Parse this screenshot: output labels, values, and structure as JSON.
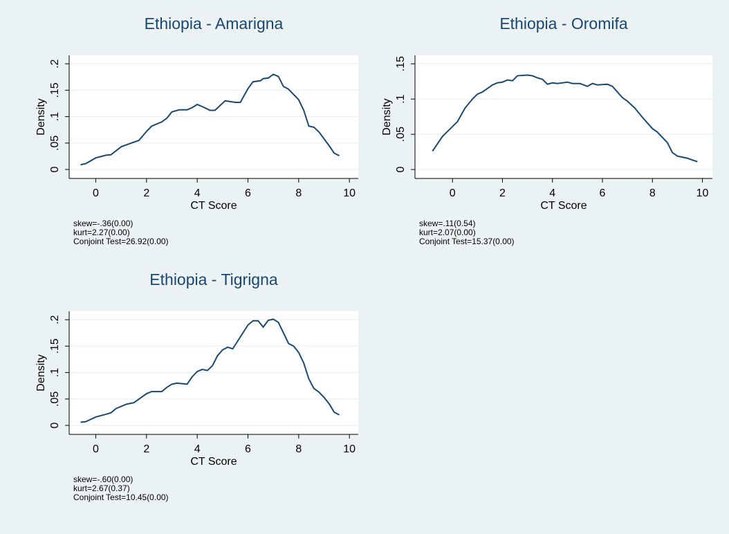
{
  "chart_data": [
    {
      "type": "line",
      "title": "Ethiopia - Amarigna",
      "xlabel": "CT Score",
      "ylabel": "Density",
      "notes": [
        "skew=-.36(0.00)",
        "kurt=2.27(0.00)",
        "Conjoint Test=26.92(0.00)"
      ],
      "xlim": [
        -1.05,
        10.35
      ],
      "ylim": [
        -0.017,
        0.216
      ],
      "xticks": [
        0,
        2,
        4,
        6,
        8,
        10
      ],
      "yticks": [
        0,
        {
          "value": 0.05,
          "label": ".05"
        },
        {
          "value": 0.1,
          "label": ".1"
        },
        {
          "value": 0.15,
          "label": ".15"
        },
        {
          "value": 0.2,
          "label": ".2"
        }
      ],
      "grid": true,
      "x": [
        -0.6,
        -0.4,
        0,
        0.4,
        0.6,
        1,
        1.4,
        1.7,
        2,
        2.2,
        2.6,
        2.8,
        3,
        3.3,
        3.6,
        3.8,
        4,
        4.2,
        4.5,
        4.7,
        5.1,
        5.5,
        5.7,
        6,
        6.2,
        6.5,
        6.6,
        6.8,
        7,
        7.2,
        7.4,
        7.6,
        8,
        8.2,
        8.4,
        8.6,
        8.8,
        9.2,
        9.4,
        9.6
      ],
      "series": [
        {
          "color": "#1a476f",
          "values": [
            0.009,
            0.011,
            0.022,
            0.027,
            0.028,
            0.043,
            0.05,
            0.055,
            0.072,
            0.082,
            0.09,
            0.097,
            0.109,
            0.113,
            0.113,
            0.117,
            0.123,
            0.119,
            0.112,
            0.112,
            0.13,
            0.127,
            0.127,
            0.153,
            0.166,
            0.168,
            0.172,
            0.173,
            0.18,
            0.176,
            0.157,
            0.152,
            0.132,
            0.112,
            0.082,
            0.08,
            0.071,
            0.045,
            0.031,
            0.026
          ]
        }
      ]
    },
    {
      "type": "line",
      "title": "Ethiopia - Oromifa",
      "xlabel": "CT Score",
      "ylabel": "Density",
      "notes": [
        "skew=.11(0.54)",
        "kurt=2.07(0.00)",
        "Conjoint Test=15.37(0.00)"
      ],
      "xlim": [
        -1.5,
        10.4
      ],
      "ylim": [
        -0.0127,
        0.162
      ],
      "xticks": [
        0,
        2,
        4,
        6,
        8,
        10
      ],
      "yticks": [
        0,
        {
          "value": 0.05,
          "label": ".05"
        },
        {
          "value": 0.1,
          "label": ".1"
        },
        {
          "value": 0.15,
          "label": ".15"
        }
      ],
      "grid": true,
      "x": [
        -0.8,
        -0.4,
        -0.2,
        0.2,
        0.5,
        0.8,
        1,
        1.2,
        1.6,
        1.8,
        2,
        2.2,
        2.4,
        2.6,
        3,
        3.2,
        3.4,
        3.6,
        3.8,
        4,
        4.2,
        4.6,
        4.8,
        5.1,
        5.4,
        5.6,
        5.8,
        6.2,
        6.4,
        6.8,
        7,
        7.3,
        7.6,
        8,
        8.2,
        8.6,
        8.8,
        9,
        9.4,
        9.8
      ],
      "series": [
        {
          "color": "#1a476f",
          "values": [
            0.026,
            0.047,
            0.054,
            0.068,
            0.087,
            0.1,
            0.107,
            0.11,
            0.12,
            0.123,
            0.124,
            0.127,
            0.126,
            0.133,
            0.134,
            0.133,
            0.13,
            0.128,
            0.121,
            0.123,
            0.122,
            0.124,
            0.122,
            0.122,
            0.118,
            0.122,
            0.12,
            0.121,
            0.118,
            0.102,
            0.097,
            0.087,
            0.074,
            0.058,
            0.053,
            0.038,
            0.024,
            0.019,
            0.016,
            0.011
          ]
        }
      ]
    },
    {
      "type": "line",
      "title": "Ethiopia - Tigrigna",
      "xlabel": "CT Score",
      "ylabel": "Density",
      "notes": [
        "skew=-.60(0.00)",
        "kurt=2.67(0.37)",
        "Conjoint Test=10.45(0.00)"
      ],
      "xlim": [
        -1.05,
        10.35
      ],
      "ylim": [
        -0.017,
        0.216
      ],
      "xticks": [
        0,
        2,
        4,
        6,
        8,
        10
      ],
      "yticks": [
        0,
        {
          "value": 0.05,
          "label": ".05"
        },
        {
          "value": 0.1,
          "label": ".1"
        },
        {
          "value": 0.15,
          "label": ".15"
        },
        {
          "value": 0.2,
          "label": ".2"
        }
      ],
      "grid": true,
      "x": [
        -0.6,
        -0.4,
        0,
        0.4,
        0.6,
        0.8,
        1.2,
        1.5,
        2,
        2.2,
        2.6,
        2.8,
        3,
        3.2,
        3.6,
        3.8,
        4,
        4.2,
        4.4,
        4.6,
        4.8,
        5,
        5.2,
        5.4,
        6,
        6.2,
        6.4,
        6.6,
        6.8,
        7,
        7.2,
        7.6,
        7.8,
        8,
        8.2,
        8.4,
        8.6,
        8.8,
        9,
        9.2,
        9.4,
        9.6
      ],
      "series": [
        {
          "color": "#1a476f",
          "values": [
            0.006,
            0.007,
            0.016,
            0.021,
            0.024,
            0.032,
            0.04,
            0.043,
            0.06,
            0.064,
            0.064,
            0.072,
            0.078,
            0.08,
            0.078,
            0.092,
            0.102,
            0.106,
            0.104,
            0.113,
            0.132,
            0.143,
            0.148,
            0.145,
            0.19,
            0.198,
            0.198,
            0.186,
            0.199,
            0.201,
            0.195,
            0.155,
            0.15,
            0.138,
            0.118,
            0.088,
            0.07,
            0.063,
            0.053,
            0.041,
            0.025,
            0.02
          ]
        }
      ]
    }
  ]
}
